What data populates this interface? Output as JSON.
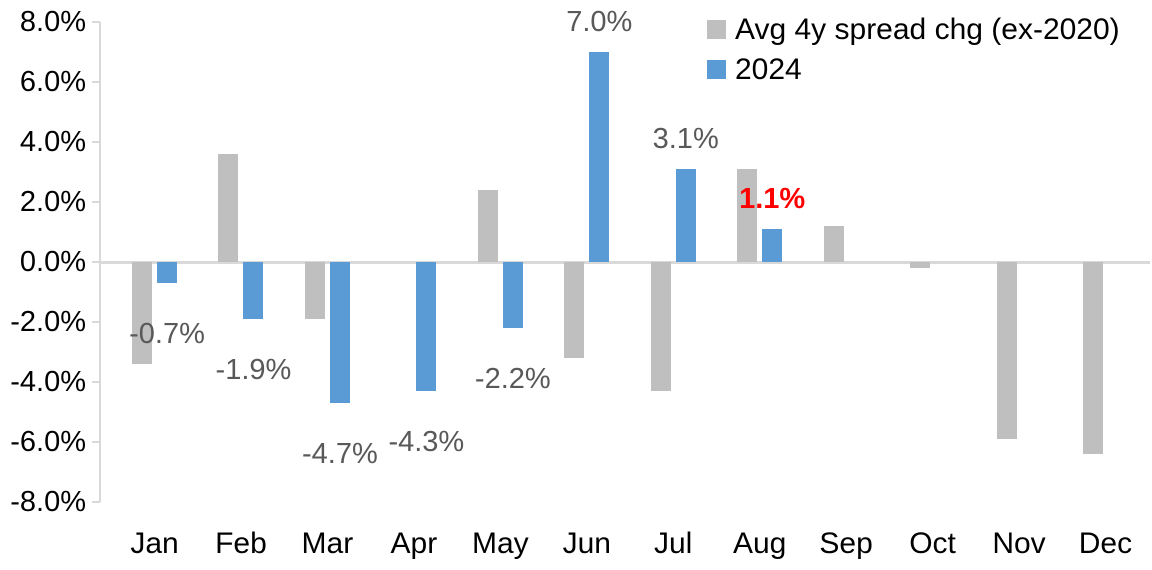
{
  "chart_data": {
    "type": "bar",
    "title": "",
    "xlabel": "",
    "ylabel": "",
    "categories": [
      "Jan",
      "Feb",
      "Mar",
      "Apr",
      "May",
      "Jun",
      "Jul",
      "Aug",
      "Sep",
      "Oct",
      "Nov",
      "Dec"
    ],
    "series": [
      {
        "name": "Avg 4y spread chg (ex-2020)",
        "color": "#bfbfbf",
        "values": [
          -3.4,
          3.6,
          -1.9,
          0.0,
          2.4,
          -3.2,
          -4.3,
          3.1,
          1.2,
          -0.2,
          -5.9,
          -6.4
        ]
      },
      {
        "name": "2024",
        "color": "#5b9bd5",
        "values": [
          -0.7,
          -1.9,
          -4.7,
          -4.3,
          -2.2,
          7.0,
          3.1,
          1.1,
          null,
          null,
          null,
          null
        ]
      }
    ],
    "data_labels": {
      "series": "2024",
      "entries": [
        {
          "category": "Jan",
          "text": "-0.7%",
          "color": "#595959",
          "bold": false
        },
        {
          "category": "Feb",
          "text": "-1.9%",
          "color": "#595959",
          "bold": false
        },
        {
          "category": "Mar",
          "text": "-4.7%",
          "color": "#595959",
          "bold": false
        },
        {
          "category": "Apr",
          "text": "-4.3%",
          "color": "#595959",
          "bold": false
        },
        {
          "category": "May",
          "text": "-2.2%",
          "color": "#595959",
          "bold": false
        },
        {
          "category": "Jun",
          "text": "7.0%",
          "color": "#595959",
          "bold": false
        },
        {
          "category": "Jul",
          "text": "3.1%",
          "color": "#595959",
          "bold": false
        },
        {
          "category": "Aug",
          "text": "1.1%",
          "color": "#ff0000",
          "bold": true
        }
      ]
    },
    "y_axis": {
      "min": -8,
      "max": 8,
      "step": 2,
      "tick_labels": [
        "8.0%",
        "6.0%",
        "4.0%",
        "2.0%",
        "0.0%",
        "-2.0%",
        "-4.0%",
        "-6.0%",
        "-8.0%"
      ]
    },
    "legend": {
      "position": "top-right",
      "entries": [
        {
          "label": "Avg 4y spread chg (ex-2020)",
          "color": "#bfbfbf"
        },
        {
          "label": "2024",
          "color": "#5b9bd5"
        }
      ]
    },
    "grid": "zero-line-only",
    "colors": {
      "axis_line": "#d9d9d9",
      "default_label": "#595959",
      "highlight_label": "#ff0000",
      "axis_text": "#000000",
      "background": "#ffffff"
    }
  }
}
